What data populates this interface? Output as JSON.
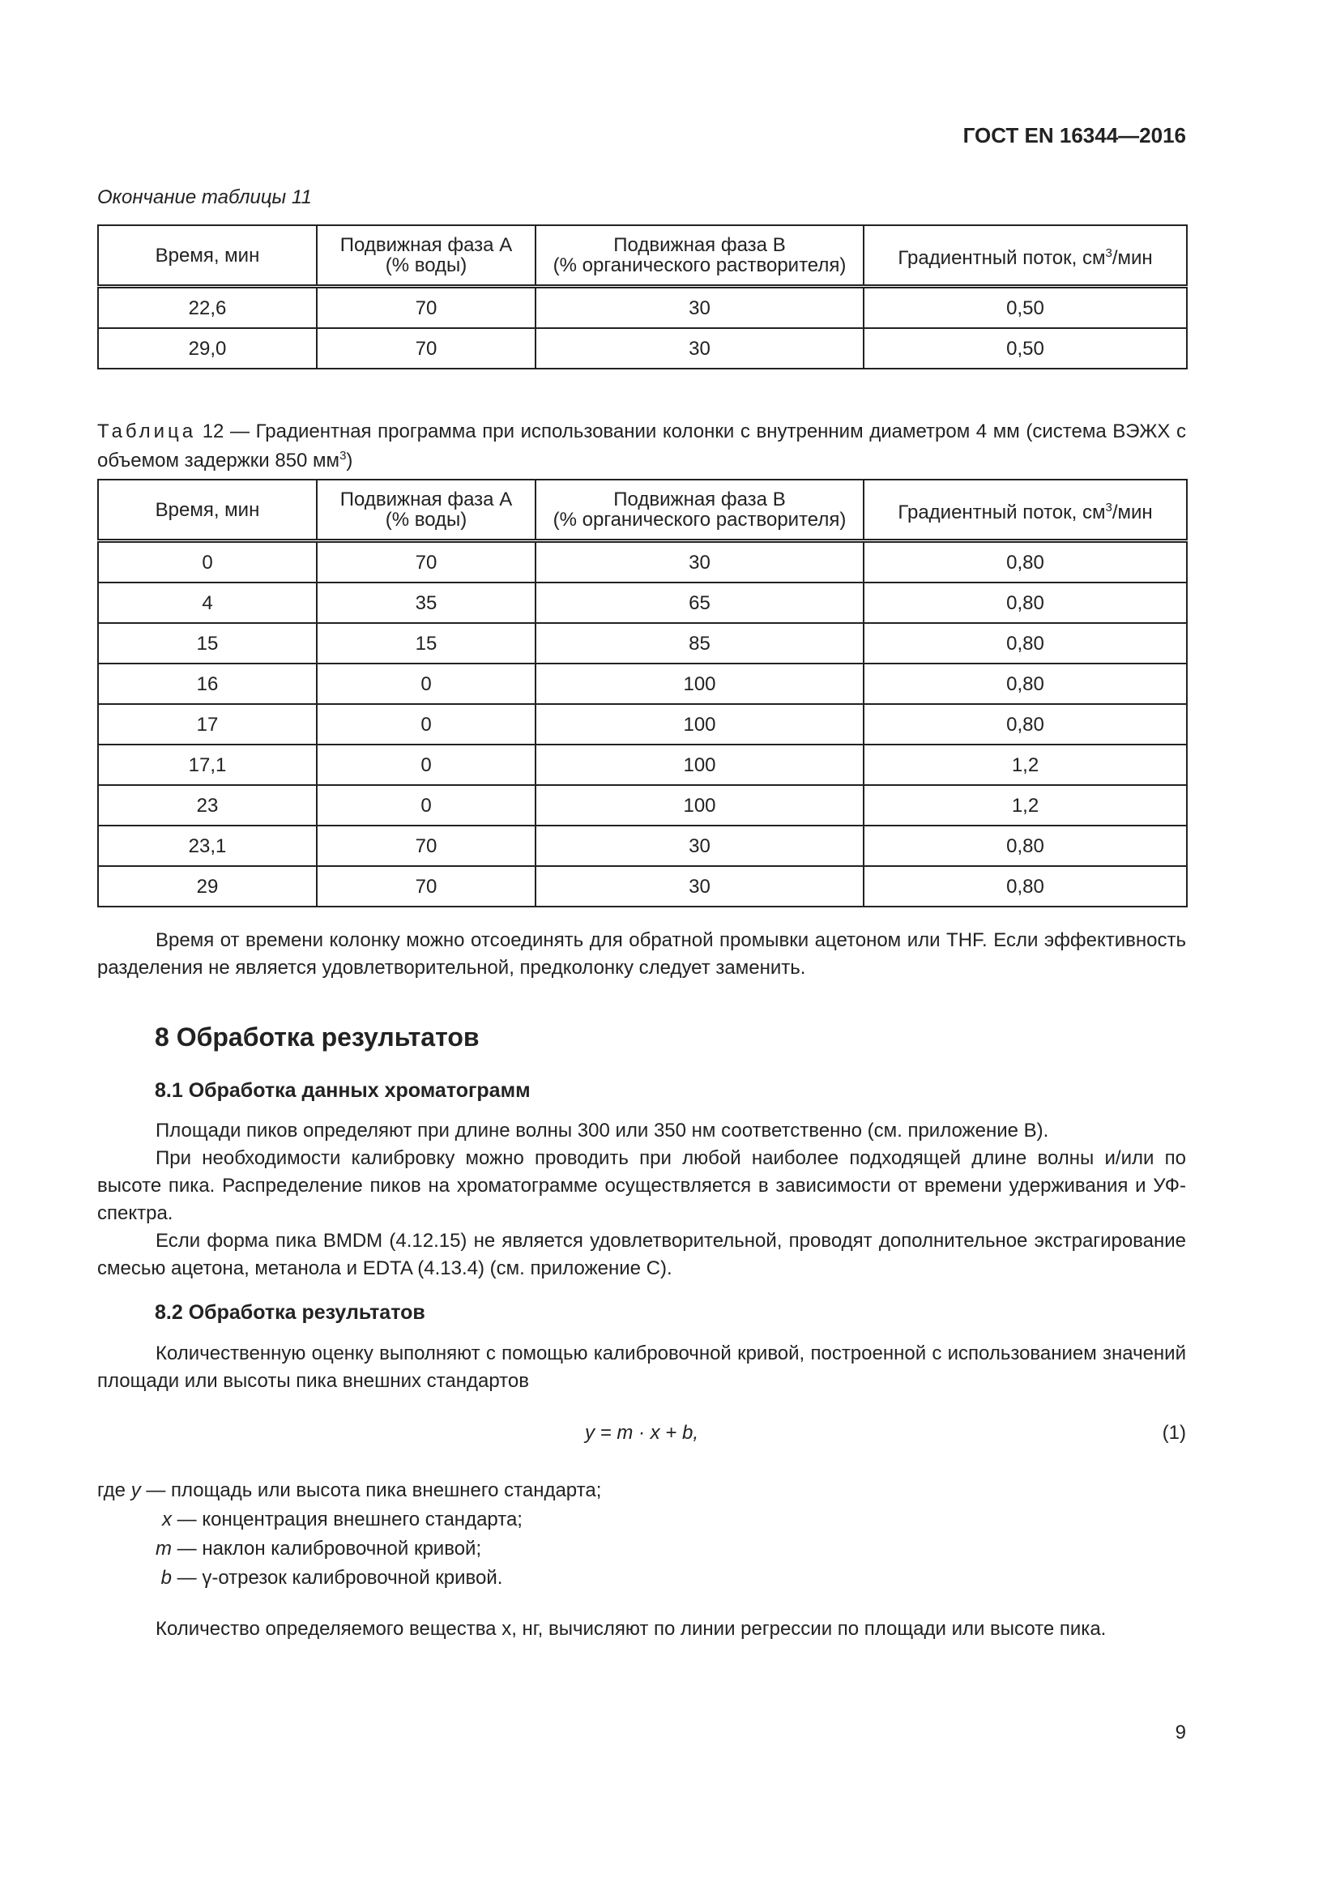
{
  "header": "ГОСТ EN 16344—2016",
  "table11": {
    "caption": "Окончание таблицы 11",
    "columns": [
      "Время, мин",
      "Подвижная фаза А",
      "(% воды)",
      "Подвижная фаза В",
      "(% органического растворителя)",
      "Градиентный поток, см",
      "3",
      "/мин"
    ],
    "rows": [
      [
        "22,6",
        "70",
        "30",
        "0,50"
      ],
      [
        "29,0",
        "70",
        "30",
        "0,50"
      ]
    ]
  },
  "table12": {
    "caption_label": "Таблица",
    "caption_text": " 12 — Градиентная программа при использовании колонки с внутренним диаметром 4 мм (система ВЭЖХ с объемом задержки 850 мм",
    "caption_sup": "3",
    "caption_end": ")",
    "rows": [
      [
        "0",
        "70",
        "30",
        "0,80"
      ],
      [
        "4",
        "35",
        "65",
        "0,80"
      ],
      [
        "15",
        "15",
        "85",
        "0,80"
      ],
      [
        "16",
        "0",
        "100",
        "0,80"
      ],
      [
        "17",
        "0",
        "100",
        "0,80"
      ],
      [
        "17,1",
        "0",
        "100",
        "1,2"
      ],
      [
        "23",
        "0",
        "100",
        "1,2"
      ],
      [
        "23,1",
        "70",
        "30",
        "0,80"
      ],
      [
        "29",
        "70",
        "30",
        "0,80"
      ]
    ]
  },
  "para1": "Время от времени колонку можно отсоединять для обратной промывки ацетоном или THF. Если эффективность разделения не является удовлетворительной, предколонку следует заменить.",
  "section8": "8 Обработка результатов",
  "section81": "8.1 Обработка данных хроматограмм",
  "p81": [
    "Площади пиков определяют при длине волны 300 или 350 нм соответственно (см. приложение В).",
    "При необходимости калибровку можно проводить при любой наиболее подходящей длине волны и/или по высоте пика. Распределение пиков на хроматограмме осуществляется в зависимости от времени удерживания и УФ-спектра.",
    "Если форма пика BMDM (4.12.15) не является удовлетворительной, проводят дополнительное экстрагирование смесью ацетона, метанола и EDTA (4.13.4) (см. приложение С)."
  ],
  "section82": "8.2 Обработка результатов",
  "p82": "Количественную оценку выполняют с помощью калибровочной кривой, построенной с использованием значений площади или высоты пика внешних стандартов",
  "formula": "y = m · x + b,",
  "formula_number": "(1)",
  "where": [
    {
      "prefix": "где ",
      "sym": "y",
      "text": " — площадь или высота пика внешнего стандарта;"
    },
    {
      "prefix": "",
      "sym": "x",
      "text": " — концентрация внешнего стандарта;"
    },
    {
      "prefix": "",
      "sym": "m",
      "text": " — наклон калибровочной кривой;"
    },
    {
      "prefix": "",
      "sym": "b",
      "text": " — γ-отрезок калибровочной кривой."
    }
  ],
  "p_last": "Количество определяемого вещества x, нг, вычисляют по линии регрессии по площади или высоте пика.",
  "page_number": "9"
}
